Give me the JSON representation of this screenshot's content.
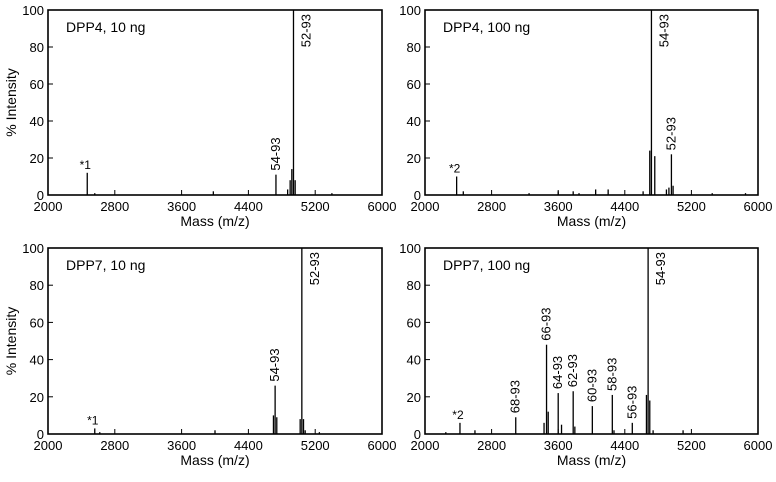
{
  "chart_data": [
    {
      "type": "bar",
      "panel_label": "DPP4, 10 ng",
      "xlabel": "Mass  (m/z)",
      "ylabel": "% Intensity",
      "xlim": [
        2000,
        6000
      ],
      "ylim": [
        0,
        100
      ],
      "xticks": [
        "2000",
        "2800",
        "3600",
        "4400",
        "5200",
        "6000"
      ],
      "yticks": [
        "0",
        "20",
        "40",
        "60",
        "80",
        "100"
      ],
      "peaks": [
        {
          "x": 2470,
          "y": 12
        },
        {
          "x": 2560,
          "y": 1
        },
        {
          "x": 3980,
          "y": 2
        },
        {
          "x": 4730,
          "y": 11
        },
        {
          "x": 4870,
          "y": 3
        },
        {
          "x": 4900,
          "y": 8
        },
        {
          "x": 4920,
          "y": 14
        },
        {
          "x": 4940,
          "y": 100
        },
        {
          "x": 4960,
          "y": 8
        },
        {
          "x": 5400,
          "y": 1
        }
      ],
      "annotations": [
        {
          "text": "*1",
          "x": 2470,
          "y": 12,
          "rotate": false
        },
        {
          "text": "54-93",
          "x": 4730,
          "y": 11,
          "rotate": true
        },
        {
          "text": "52-93",
          "x": 4940,
          "y": 100,
          "rotate": true,
          "inside": true
        }
      ]
    },
    {
      "type": "bar",
      "panel_label": "DPP4, 100 ng",
      "xlabel": "Mass  (m/z)",
      "ylabel": "",
      "xlim": [
        2000,
        6000
      ],
      "ylim": [
        0,
        100
      ],
      "xticks": [
        "2000",
        "2800",
        "3600",
        "4400",
        "5200",
        "6000"
      ],
      "yticks": [
        "0",
        "20",
        "40",
        "60",
        "80",
        "100"
      ],
      "peaks": [
        {
          "x": 2380,
          "y": 10
        },
        {
          "x": 2460,
          "y": 2
        },
        {
          "x": 3250,
          "y": 1
        },
        {
          "x": 3600,
          "y": 2
        },
        {
          "x": 3780,
          "y": 2
        },
        {
          "x": 3850,
          "y": 1
        },
        {
          "x": 4050,
          "y": 3
        },
        {
          "x": 4200,
          "y": 3
        },
        {
          "x": 4620,
          "y": 2
        },
        {
          "x": 4700,
          "y": 24
        },
        {
          "x": 4720,
          "y": 100
        },
        {
          "x": 4760,
          "y": 21
        },
        {
          "x": 4900,
          "y": 3
        },
        {
          "x": 4930,
          "y": 4
        },
        {
          "x": 4960,
          "y": 22
        },
        {
          "x": 4980,
          "y": 5
        },
        {
          "x": 5450,
          "y": 1
        },
        {
          "x": 5850,
          "y": 1
        }
      ],
      "annotations": [
        {
          "text": "*2",
          "x": 2380,
          "y": 10,
          "rotate": false
        },
        {
          "text": "54-93",
          "x": 4720,
          "y": 100,
          "rotate": true,
          "inside": true
        },
        {
          "text": "52-93",
          "x": 4960,
          "y": 22,
          "rotate": true
        }
      ]
    },
    {
      "type": "bar",
      "panel_label": "DPP7, 10 ng",
      "xlabel": "Mass  (m/z)",
      "ylabel": "% Intensity",
      "xlim": [
        2000,
        6000
      ],
      "ylim": [
        0,
        100
      ],
      "xticks": [
        "2000",
        "2800",
        "3600",
        "4400",
        "5200",
        "6000"
      ],
      "yticks": [
        "0",
        "20",
        "40",
        "60",
        "80",
        "100"
      ],
      "peaks": [
        {
          "x": 2560,
          "y": 3
        },
        {
          "x": 2620,
          "y": 1
        },
        {
          "x": 4000,
          "y": 2
        },
        {
          "x": 4700,
          "y": 10
        },
        {
          "x": 4720,
          "y": 26
        },
        {
          "x": 4740,
          "y": 9
        },
        {
          "x": 5020,
          "y": 8
        },
        {
          "x": 5040,
          "y": 100
        },
        {
          "x": 5060,
          "y": 8
        },
        {
          "x": 5080,
          "y": 2
        },
        {
          "x": 5250,
          "y": 1
        }
      ],
      "annotations": [
        {
          "text": "*1",
          "x": 2560,
          "y": 3,
          "rotate": false
        },
        {
          "text": "54-93",
          "x": 4720,
          "y": 26,
          "rotate": true
        },
        {
          "text": "52-93",
          "x": 5040,
          "y": 100,
          "rotate": true,
          "inside": true
        }
      ]
    },
    {
      "type": "bar",
      "panel_label": "DPP7, 100 ng",
      "xlabel": "Mass  (m/z)",
      "ylabel": "",
      "xlim": [
        2000,
        6000
      ],
      "ylim": [
        0,
        100
      ],
      "xticks": [
        "2000",
        "2800",
        "3600",
        "4400",
        "5200",
        "6000"
      ],
      "yticks": [
        "0",
        "20",
        "40",
        "60",
        "80",
        "100"
      ],
      "peaks": [
        {
          "x": 2250,
          "y": 1
        },
        {
          "x": 2420,
          "y": 6
        },
        {
          "x": 2600,
          "y": 2
        },
        {
          "x": 3090,
          "y": 9
        },
        {
          "x": 3430,
          "y": 6
        },
        {
          "x": 3460,
          "y": 48
        },
        {
          "x": 3480,
          "y": 12
        },
        {
          "x": 3600,
          "y": 22
        },
        {
          "x": 3640,
          "y": 5
        },
        {
          "x": 3780,
          "y": 23
        },
        {
          "x": 3800,
          "y": 4
        },
        {
          "x": 4010,
          "y": 15
        },
        {
          "x": 4250,
          "y": 21
        },
        {
          "x": 4270,
          "y": 2
        },
        {
          "x": 4490,
          "y": 6
        },
        {
          "x": 4660,
          "y": 21
        },
        {
          "x": 4680,
          "y": 100
        },
        {
          "x": 4700,
          "y": 18
        },
        {
          "x": 4740,
          "y": 2
        },
        {
          "x": 5100,
          "y": 2
        }
      ],
      "annotations": [
        {
          "text": "*2",
          "x": 2420,
          "y": 6,
          "rotate": false
        },
        {
          "text": "68-93",
          "x": 3090,
          "y": 9,
          "rotate": true
        },
        {
          "text": "66-93",
          "x": 3460,
          "y": 48,
          "rotate": true
        },
        {
          "text": "64-93",
          "x": 3600,
          "y": 22,
          "rotate": true
        },
        {
          "text": "62-93",
          "x": 3780,
          "y": 23,
          "rotate": true
        },
        {
          "text": "60-93",
          "x": 4010,
          "y": 15,
          "rotate": true
        },
        {
          "text": "58-93",
          "x": 4250,
          "y": 21,
          "rotate": true
        },
        {
          "text": "56-93",
          "x": 4490,
          "y": 6,
          "rotate": true
        },
        {
          "text": "54-93",
          "x": 4680,
          "y": 100,
          "rotate": true,
          "inside": true
        }
      ]
    }
  ]
}
